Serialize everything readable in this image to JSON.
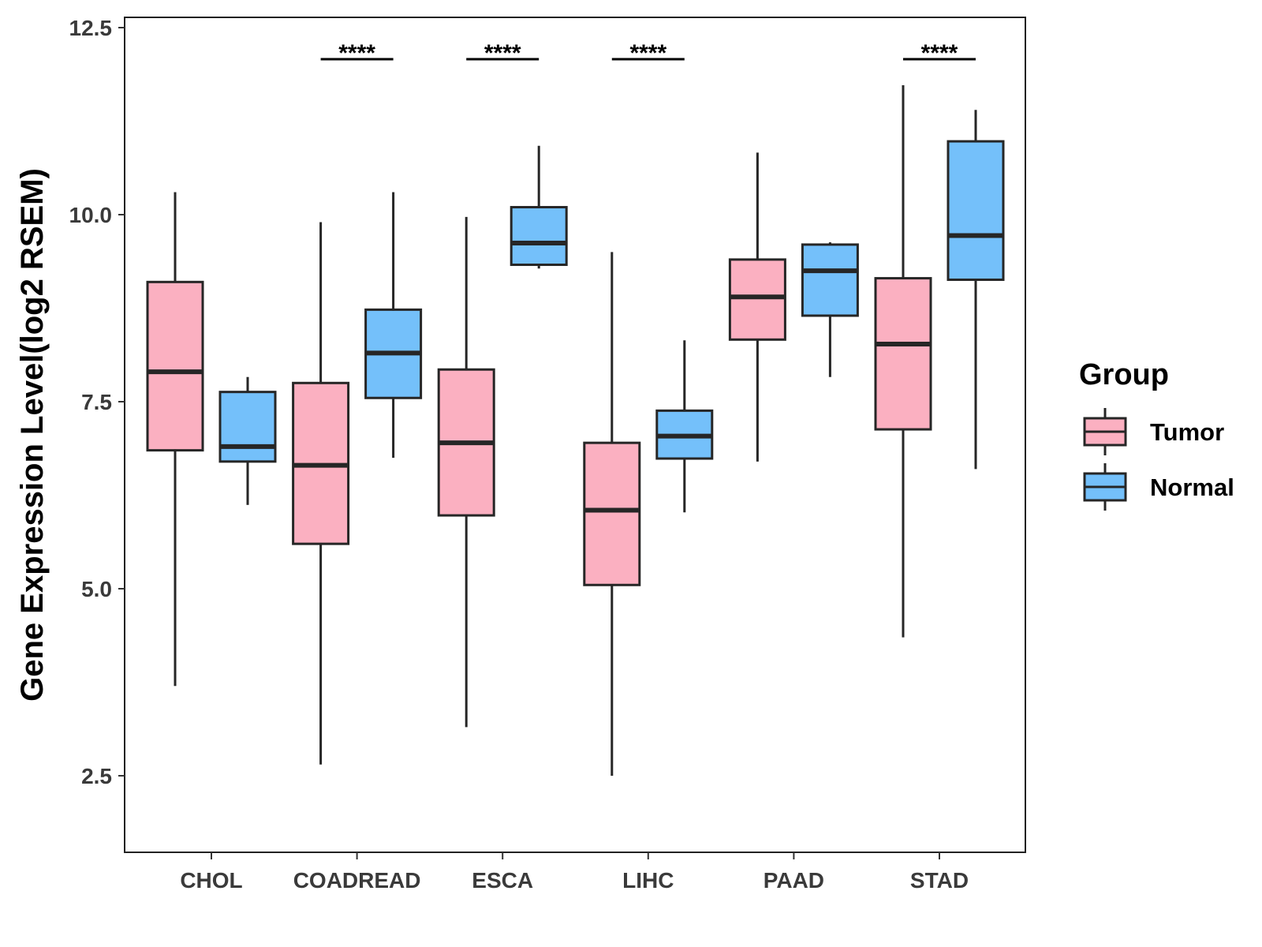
{
  "chart_data": {
    "type": "box",
    "title": "",
    "xlabel": "",
    "ylabel": "Gene Expression Level(log2 RSEM)",
    "ylim": [
      1.5,
      12.6
    ],
    "yticks": [
      2.5,
      5.0,
      7.5,
      10.0,
      12.5
    ],
    "ytick_labels": [
      "2.5",
      "5.0",
      "7.5",
      "10.0",
      "12.5"
    ],
    "categories": [
      "CHOL",
      "COADREAD",
      "ESCA",
      "LIHC",
      "PAAD",
      "STAD"
    ],
    "legend": {
      "title": "Group",
      "position": "right",
      "entries": [
        {
          "name": "Tumor",
          "color": "#FBB0C1"
        },
        {
          "name": "Normal",
          "color": "#74C0FA"
        }
      ]
    },
    "series": [
      {
        "name": "Tumor",
        "color": "#FBB0C1",
        "boxes": [
          {
            "min": 3.7,
            "q1": 6.85,
            "median": 7.9,
            "q3": 9.1,
            "max": 10.3
          },
          {
            "min": 2.65,
            "q1": 5.6,
            "median": 6.65,
            "q3": 7.75,
            "max": 9.9
          },
          {
            "min": 3.15,
            "q1": 5.98,
            "median": 6.95,
            "q3": 7.93,
            "max": 9.97
          },
          {
            "min": 2.5,
            "q1": 5.05,
            "median": 6.05,
            "q3": 6.95,
            "max": 9.5
          },
          {
            "min": 6.7,
            "q1": 8.33,
            "median": 8.9,
            "q3": 9.4,
            "max": 10.83
          },
          {
            "min": 4.35,
            "q1": 7.13,
            "median": 8.27,
            "q3": 9.15,
            "max": 11.73
          }
        ]
      },
      {
        "name": "Normal",
        "color": "#74C0FA",
        "boxes": [
          {
            "min": 6.12,
            "q1": 6.7,
            "median": 6.9,
            "q3": 7.63,
            "max": 7.83
          },
          {
            "min": 6.75,
            "q1": 7.55,
            "median": 8.15,
            "q3": 8.73,
            "max": 10.3
          },
          {
            "min": 9.28,
            "q1": 9.33,
            "median": 9.62,
            "q3": 10.1,
            "max": 10.92
          },
          {
            "min": 6.02,
            "q1": 6.74,
            "median": 7.04,
            "q3": 7.38,
            "max": 8.32
          },
          {
            "min": 7.83,
            "q1": 8.65,
            "median": 9.25,
            "q3": 9.6,
            "max": 9.63
          },
          {
            "min": 6.6,
            "q1": 9.13,
            "median": 9.72,
            "q3": 10.98,
            "max": 11.4
          }
        ]
      }
    ],
    "significance": [
      {
        "category": "COADREAD",
        "label": "****"
      },
      {
        "category": "ESCA",
        "label": "****"
      },
      {
        "category": "LIHC",
        "label": "****"
      },
      {
        "category": "STAD",
        "label": "****"
      }
    ]
  }
}
